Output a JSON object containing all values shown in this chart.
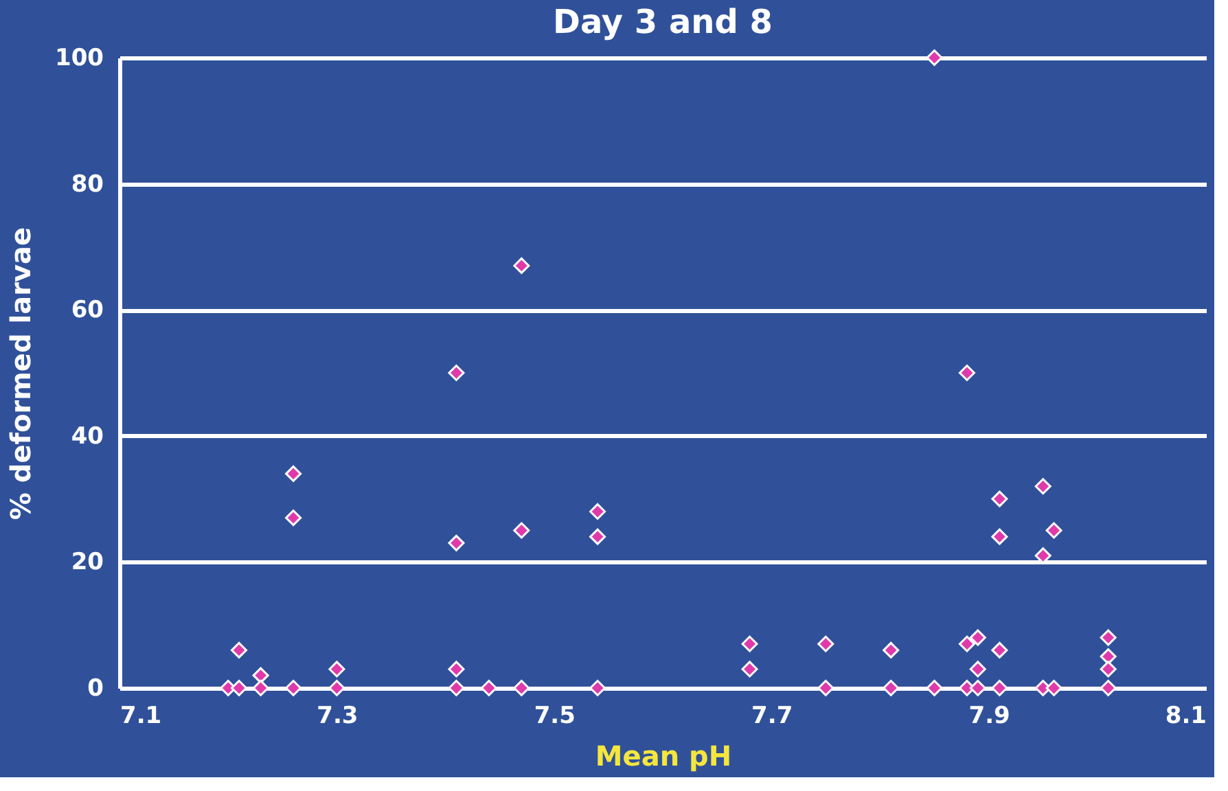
{
  "chart_data": {
    "type": "scatter",
    "title": "Day 3 and 8",
    "xlabel": "Mean pH",
    "ylabel": "% deformed larvae",
    "x": [
      7.2,
      7.21,
      7.21,
      7.23,
      7.23,
      7.26,
      7.26,
      7.26,
      7.3,
      7.3,
      7.41,
      7.41,
      7.41,
      7.41,
      7.44,
      7.47,
      7.47,
      7.47,
      7.54,
      7.54,
      7.54,
      7.68,
      7.68,
      7.75,
      7.75,
      7.81,
      7.81,
      7.85,
      7.85,
      7.88,
      7.88,
      7.88,
      7.89,
      7.89,
      7.89,
      7.91,
      7.91,
      7.91,
      7.91,
      7.95,
      7.95,
      7.95,
      7.96,
      7.96,
      8.01,
      8.01,
      8.01,
      8.01
    ],
    "series": [
      {
        "color": "#e03aaa",
        "values": [
          0,
          6,
          0,
          2,
          0,
          34,
          27,
          0,
          3,
          0,
          50,
          23,
          3,
          0,
          0,
          67,
          25,
          0,
          28,
          24,
          0,
          7,
          3,
          7,
          0,
          6,
          0,
          100,
          0,
          50,
          7,
          0,
          8,
          3,
          0,
          30,
          24,
          6,
          0,
          32,
          21,
          0,
          25,
          0,
          8,
          5,
          3,
          0
        ]
      }
    ],
    "xlim": [
      7.1,
      8.1
    ],
    "xticks": [
      7.1,
      7.3,
      7.5,
      7.7,
      7.9,
      8.1
    ],
    "ylim": [
      0,
      100
    ],
    "yticks": [
      0,
      20,
      40,
      60,
      80,
      100
    ],
    "grid": "y",
    "marker": "diamond"
  }
}
